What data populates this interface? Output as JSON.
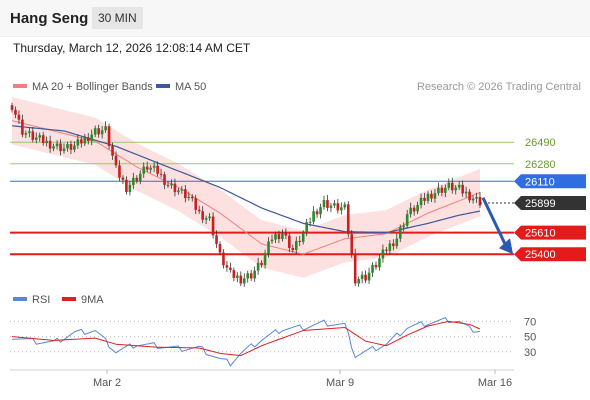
{
  "header": {
    "symbol": "Hang Seng",
    "interval": "30 MIN",
    "datetime": "Thursday, March 12, 2026 12:08:14 AM CET"
  },
  "legend": {
    "bollinger": {
      "label": "MA 20 + Bollinger Bands",
      "color": "#f08080"
    },
    "ma50": {
      "label": "MA 50",
      "color": "#3a5a9a"
    },
    "copyright": "Research © 2026 Trading Central"
  },
  "rsi_legend": {
    "rsi": {
      "label": "RSI",
      "color": "#5a86d8"
    },
    "ma9": {
      "label": "9MA",
      "color": "#e02020"
    }
  },
  "chart_data": [
    {
      "type": "candlestick",
      "title": "Hang Seng",
      "ylim": [
        25100,
        26950
      ],
      "levels": [
        {
          "value": 26490,
          "label": "26490",
          "color": "#9cc56a",
          "kind": "resistance"
        },
        {
          "value": 26280,
          "label": "26280",
          "color": "#9cc56a",
          "kind": "resistance"
        },
        {
          "value": 26110,
          "label": "26110",
          "color": "#2f6de1",
          "kind": "pivot"
        },
        {
          "value": 25610,
          "label": "25610",
          "color": "#e41b1b",
          "kind": "support"
        },
        {
          "value": 25400,
          "label": "25400",
          "color": "#e41b1b",
          "kind": "support"
        }
      ],
      "last_price": {
        "value": 25899,
        "label": "25899"
      },
      "forecast_arrow": {
        "from": 25950,
        "to": 25400
      },
      "x_ticks": [
        "Mar 2",
        "Mar 9",
        "Mar 16"
      ],
      "price_path": [
        [
          0,
          26850
        ],
        [
          3,
          26600
        ],
        [
          6,
          26540
        ],
        [
          9,
          26500
        ],
        [
          12,
          26460
        ],
        [
          15,
          26430
        ],
        [
          18,
          26450
        ],
        [
          21,
          26520
        ],
        [
          24,
          26600
        ],
        [
          27,
          26610
        ],
        [
          30,
          26220
        ],
        [
          33,
          26050
        ],
        [
          36,
          26150
        ],
        [
          39,
          26250
        ],
        [
          42,
          26200
        ],
        [
          45,
          26080
        ],
        [
          48,
          26020
        ],
        [
          51,
          25950
        ],
        [
          54,
          25800
        ],
        [
          57,
          25740
        ],
        [
          60,
          25380
        ],
        [
          63,
          25200
        ],
        [
          66,
          25160
        ],
        [
          69,
          25200
        ],
        [
          72,
          25320
        ],
        [
          75,
          25560
        ],
        [
          78,
          25610
        ],
        [
          81,
          25440
        ],
        [
          84,
          25600
        ],
        [
          87,
          25800
        ],
        [
          90,
          25900
        ],
        [
          93,
          25860
        ],
        [
          96,
          25840
        ],
        [
          99,
          25160
        ],
        [
          102,
          25180
        ],
        [
          105,
          25300
        ],
        [
          108,
          25450
        ],
        [
          111,
          25560
        ],
        [
          114,
          25790
        ],
        [
          117,
          25870
        ],
        [
          120,
          25970
        ],
        [
          123,
          26020
        ],
        [
          126,
          26060
        ],
        [
          129,
          26030
        ],
        [
          132,
          25970
        ],
        [
          135,
          25910
        ]
      ],
      "ma20_path": [
        [
          0,
          26700
        ],
        [
          12,
          26600
        ],
        [
          24,
          26500
        ],
        [
          36,
          26250
        ],
        [
          48,
          26050
        ],
        [
          60,
          25800
        ],
        [
          72,
          25500
        ],
        [
          84,
          25400
        ],
        [
          96,
          25550
        ],
        [
          108,
          25600
        ],
        [
          120,
          25800
        ],
        [
          135,
          26000
        ]
      ],
      "ma50_path": [
        [
          0,
          26650
        ],
        [
          15,
          26600
        ],
        [
          30,
          26450
        ],
        [
          45,
          26250
        ],
        [
          60,
          26050
        ],
        [
          72,
          25850
        ],
        [
          84,
          25700
        ],
        [
          96,
          25620
        ],
        [
          108,
          25610
        ],
        [
          120,
          25700
        ],
        [
          129,
          25780
        ],
        [
          135,
          25820
        ]
      ],
      "band_width": 230
    },
    {
      "type": "line",
      "title": "RSI",
      "ylim": [
        10,
        85
      ],
      "gridlines": [
        70,
        50,
        30
      ],
      "y_ticks": [
        "70",
        "50",
        "30"
      ],
      "series": [
        {
          "name": "RSI",
          "color": "#5a86d8",
          "points": [
            [
              0,
              50
            ],
            [
              6,
              44
            ],
            [
              12,
              42
            ],
            [
              18,
              55
            ],
            [
              24,
              58
            ],
            [
              30,
              30
            ],
            [
              36,
              40
            ],
            [
              42,
              38
            ],
            [
              48,
              34
            ],
            [
              54,
              35
            ],
            [
              60,
              20
            ],
            [
              63,
              15
            ],
            [
              66,
              28
            ],
            [
              72,
              46
            ],
            [
              78,
              60
            ],
            [
              84,
              62
            ],
            [
              90,
              68
            ],
            [
              96,
              65
            ],
            [
              99,
              25
            ],
            [
              102,
              30
            ],
            [
              108,
              40
            ],
            [
              114,
              62
            ],
            [
              120,
              68
            ],
            [
              126,
              72
            ],
            [
              129,
              70
            ],
            [
              132,
              60
            ],
            [
              135,
              58
            ]
          ]
        },
        {
          "name": "9MA",
          "color": "#e02020",
          "points": [
            [
              0,
              50
            ],
            [
              12,
              45
            ],
            [
              24,
              48
            ],
            [
              30,
              40
            ],
            [
              42,
              36
            ],
            [
              54,
              35
            ],
            [
              60,
              28
            ],
            [
              66,
              25
            ],
            [
              72,
              38
            ],
            [
              84,
              58
            ],
            [
              96,
              62
            ],
            [
              102,
              44
            ],
            [
              108,
              38
            ],
            [
              114,
              52
            ],
            [
              120,
              64
            ],
            [
              126,
              70
            ],
            [
              132,
              66
            ],
            [
              135,
              60
            ]
          ]
        }
      ]
    }
  ]
}
